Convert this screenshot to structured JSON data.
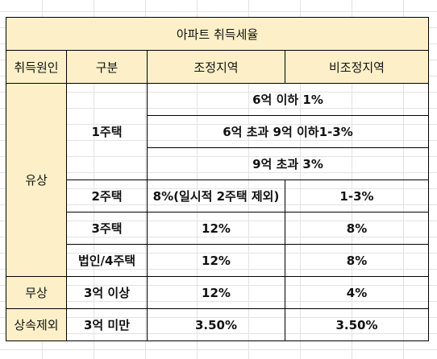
{
  "title": "아파트 취득세율",
  "columns": [
    "취득원인",
    "구분",
    "조정지역",
    "비조정지역"
  ],
  "rows": {
    "paid": {
      "category": "유상",
      "one_house": {
        "label": "1주택",
        "tiers": [
          "6억 이하 1%",
          "6억 초과 9억 이하1-3%",
          "9억 초과 3%"
        ]
      },
      "two_house": {
        "label": "2주택",
        "adjusted": "8%(일시적 2주택 제외)",
        "non_adjusted": "1-3%"
      },
      "three_house": {
        "label": "3주택",
        "adjusted": "12%",
        "non_adjusted": "8%"
      },
      "corp": {
        "label": "법인/4주택",
        "adjusted": "12%",
        "non_adjusted": "8%"
      }
    },
    "free": {
      "category": "무상",
      "label": "3억 이상",
      "adjusted": "12%",
      "non_adjusted": "4%"
    },
    "inherit": {
      "category": "상속제외",
      "label": "3억 미만",
      "adjusted": "3.50%",
      "non_adjusted": "3.50%"
    }
  },
  "colors": {
    "header_fill": "#fdf0c8",
    "border": "#000000"
  }
}
